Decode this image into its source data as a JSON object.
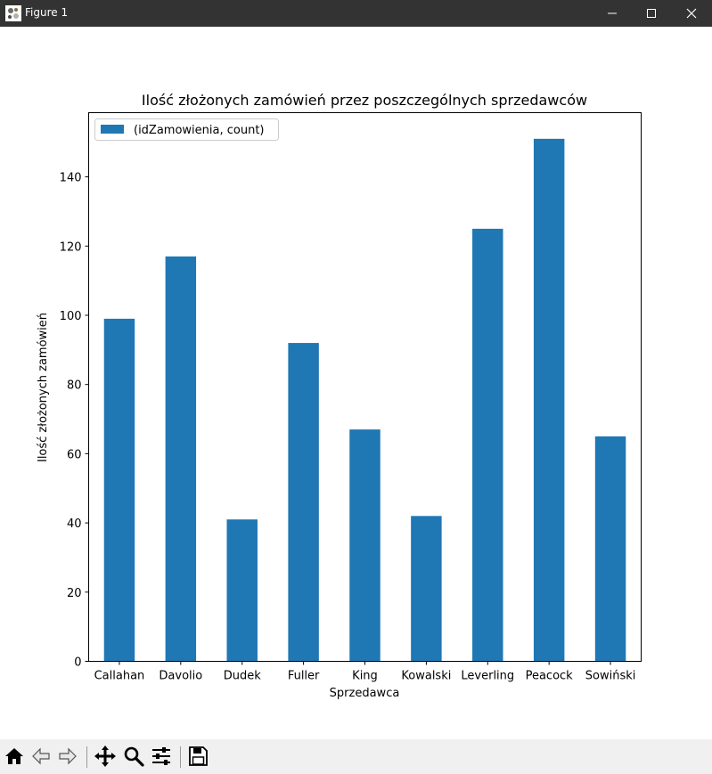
{
  "window": {
    "title": "Figure 1",
    "controls": [
      "minimize-icon",
      "maximize-icon",
      "close-icon"
    ]
  },
  "colors": {
    "bar": "#1f77b4",
    "titlebar": "#333333",
    "toolbar": "#f0f0f0"
  },
  "toolbar": {
    "buttons": [
      "home-icon",
      "back-arrow-icon",
      "forward-arrow-icon",
      "pan-icon",
      "zoom-icon",
      "configure-subplots-icon",
      "save-icon"
    ]
  },
  "chart_data": {
    "type": "bar",
    "title": "Ilość złożonych zamówień przez poszczególnych sprzedawców",
    "xlabel": "Sprzedawca",
    "ylabel": "Ilość złożonych zamówień",
    "categories": [
      "Callahan",
      "Davolio",
      "Dudek",
      "Fuller",
      "King",
      "Kowalski",
      "Leverling",
      "Peacock",
      "Sowiński"
    ],
    "series": [
      {
        "name": "(idZamowienia, count)",
        "values": [
          99,
          117,
          41,
          92,
          67,
          42,
          125,
          151,
          65
        ]
      }
    ],
    "ylim": [
      0,
      158.55
    ],
    "yticks": [
      0,
      20,
      40,
      60,
      80,
      100,
      120,
      140
    ],
    "grid": false,
    "legend": "top-left"
  }
}
